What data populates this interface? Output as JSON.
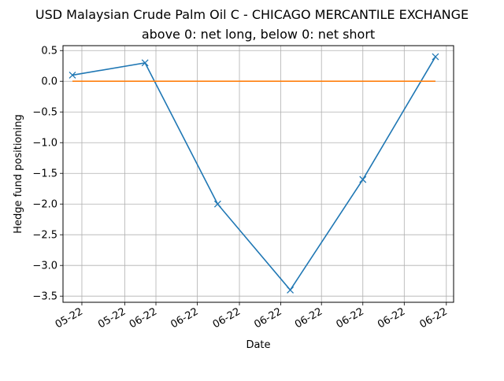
{
  "chart_data": {
    "type": "line",
    "title": "USD Malaysian Crude Palm Oil C - CHICAGO MERCANTILE EXCHANGE",
    "subtitle": "above 0: net long, below 0: net short",
    "xlabel": "Date",
    "ylabel": "Hedge fund positioning",
    "ylim": [
      -3.6,
      0.58
    ],
    "yticks": [
      0.5,
      0.0,
      -0.5,
      -1.0,
      -1.5,
      -2.0,
      -2.5,
      -3.0,
      -3.5
    ],
    "ytick_labels": [
      "0.5",
      "0.0",
      "−0.5",
      "−1.0",
      "−1.5",
      "−2.0",
      "−2.5",
      "−3.0",
      "−3.5"
    ],
    "xlim": [
      -0.13,
      5.25
    ],
    "xticks": [
      0.13,
      0.72,
      1.15,
      1.72,
      2.3,
      2.87,
      3.43,
      4.0,
      4.57,
      5.15
    ],
    "xtick_labels": [
      "05-22",
      "05-22",
      "06-22",
      "06-22",
      "06-22",
      "06-22",
      "06-22",
      "06-22",
      "06-22",
      "06-22"
    ],
    "grid": true,
    "series": [
      {
        "x": [
          0,
          1,
          2,
          3,
          4,
          5
        ],
        "values": [
          0.1,
          0.3,
          -2.0,
          -3.4,
          -1.6,
          0.4
        ],
        "color": "#1f77b4",
        "marker": "x"
      },
      {
        "x": [
          0,
          5
        ],
        "values": [
          0.0,
          0.0
        ],
        "color": "#ff7f0e",
        "marker": "none"
      }
    ]
  }
}
